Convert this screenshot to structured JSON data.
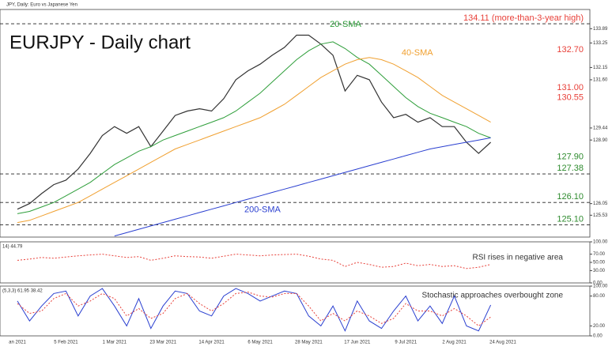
{
  "chart_data": [
    {
      "type": "line",
      "title": "EURJPY - Daily chart",
      "subtitle": "JPY, Daily:  Euro vs Japanese Yen",
      "ylim": [
        124.55,
        134.75
      ],
      "yticks": [
        {
          "value": 125.53,
          "label": "125.53"
        },
        {
          "value": 126.05,
          "label": "126.05"
        },
        {
          "value": 128.9,
          "label": "128.90"
        },
        {
          "value": 129.44,
          "label": "129.44"
        },
        {
          "value": 131.6,
          "label": "131.60"
        },
        {
          "value": 132.15,
          "label": "132.15"
        },
        {
          "value": 133.25,
          "label": "133.25"
        },
        {
          "value": 133.89,
          "label": "133.89"
        }
      ],
      "levels": [
        {
          "value": 134.11,
          "label": "134.11 (more-than-3-year high)",
          "color": "#e8413a",
          "line": true
        },
        {
          "value": 132.7,
          "label": "132.70",
          "color": "#e8413a",
          "line": false
        },
        {
          "value": 131.0,
          "label": "131.00",
          "color": "#e8413a",
          "line": false
        },
        {
          "value": 130.55,
          "label": "130.55",
          "color": "#e8413a",
          "line": false
        },
        {
          "value": 127.9,
          "label": "127.90",
          "color": "#2e8b2e",
          "line": false
        },
        {
          "value": 127.38,
          "label": "127.38",
          "color": "#2e8b2e",
          "line": true
        },
        {
          "value": 126.1,
          "label": "126.10",
          "color": "#2e8b2e",
          "line": true
        },
        {
          "value": 125.1,
          "label": "125.10",
          "color": "#2e8b2e",
          "line": true
        }
      ],
      "series": [
        {
          "color": "#333333",
          "values": [
            125.8,
            126.05,
            126.5,
            126.9,
            127.1,
            127.6,
            128.3,
            129.1,
            129.5,
            129.2,
            129.5,
            128.6,
            129.3,
            130.0,
            130.2,
            130.3,
            130.2,
            130.75,
            131.6,
            132.0,
            132.3,
            132.7,
            133.05,
            133.6,
            133.6,
            133.2,
            132.7,
            131.1,
            131.8,
            131.6,
            130.6,
            129.9,
            130.05,
            129.7,
            129.9,
            129.5,
            129.5,
            128.8,
            128.3,
            128.8,
            null
          ]
        },
        {
          "name": "20-SMA",
          "color": "#2e9e3a",
          "values": [
            125.6,
            125.7,
            125.9,
            126.1,
            126.4,
            126.7,
            127.0,
            127.4,
            127.8,
            128.1,
            128.4,
            128.6,
            128.9,
            129.1,
            129.3,
            129.5,
            129.7,
            129.9,
            130.2,
            130.6,
            131.0,
            131.5,
            132.0,
            132.5,
            132.9,
            133.2,
            133.3,
            133.0,
            132.6,
            132.3,
            131.8,
            131.3,
            130.8,
            130.4,
            130.1,
            129.9,
            129.7,
            129.5,
            129.2,
            129.0,
            null
          ]
        },
        {
          "name": "40-SMA",
          "color": "#f0a030",
          "values": [
            125.2,
            125.3,
            125.5,
            125.7,
            125.9,
            126.1,
            126.4,
            126.7,
            127.0,
            127.3,
            127.6,
            127.9,
            128.2,
            128.5,
            128.7,
            128.9,
            129.1,
            129.3,
            129.5,
            129.7,
            129.9,
            130.2,
            130.5,
            130.9,
            131.3,
            131.7,
            132.0,
            132.3,
            132.5,
            132.6,
            132.5,
            132.3,
            132.0,
            131.7,
            131.3,
            130.9,
            130.6,
            130.3,
            130.0,
            129.7,
            null
          ]
        },
        {
          "name": "200-SMA",
          "color": "#2a3fd0",
          "values": [
            null,
            null,
            null,
            null,
            null,
            null,
            null,
            null,
            124.6,
            124.75,
            124.9,
            125.05,
            125.2,
            125.35,
            125.5,
            125.65,
            125.8,
            125.95,
            126.1,
            126.25,
            126.4,
            126.55,
            126.7,
            126.85,
            127.0,
            127.15,
            127.3,
            127.45,
            127.6,
            127.75,
            127.9,
            128.05,
            128.2,
            128.35,
            128.5,
            128.6,
            128.7,
            128.8,
            128.9,
            129.0,
            null
          ]
        }
      ]
    },
    {
      "type": "line",
      "title": "14) 44.79",
      "annotation": "RSI rises in negative area",
      "ylim": [
        0,
        100
      ],
      "yticks": [
        {
          "value": 0,
          "label": "0.00"
        },
        {
          "value": 30,
          "label": "30.00"
        },
        {
          "value": 50,
          "label": "50.00"
        },
        {
          "value": 70,
          "label": "70.00"
        },
        {
          "value": 100,
          "label": "100.00"
        }
      ],
      "series": [
        {
          "color": "#e8413a",
          "dash": true,
          "values": [
            55,
            58,
            62,
            60,
            63,
            66,
            68,
            70,
            66,
            62,
            64,
            55,
            60,
            66,
            64,
            63,
            60,
            65,
            70,
            68,
            66,
            68,
            69,
            70,
            65,
            58,
            55,
            40,
            50,
            45,
            38,
            40,
            48,
            42,
            45,
            40,
            42,
            35,
            38,
            45,
            null
          ]
        }
      ]
    },
    {
      "type": "line",
      "title": "(5,3,3) 61.95 38.42",
      "annotation": "Stochastic approaches overbought zone",
      "ylim": [
        0,
        100
      ],
      "yticks": [
        {
          "value": 0,
          "label": "0.00"
        },
        {
          "value": 20,
          "label": "20.00"
        },
        {
          "value": 80,
          "label": "80.00"
        },
        {
          "value": 100,
          "label": "100.00"
        }
      ],
      "categories": [
        "an 2021",
        null,
        null,
        null,
        "5 Feb 2021",
        null,
        null,
        null,
        "1 Mar 2021",
        null,
        null,
        null,
        "23 Mar 2021",
        null,
        null,
        null,
        "14 Apr 2021",
        null,
        null,
        null,
        "6 May 2021",
        null,
        null,
        null,
        "28 May 2021",
        null,
        null,
        null,
        "17 Jun 2021",
        null,
        null,
        null,
        "9 Jul 2021",
        null,
        null,
        null,
        "2 Aug 2021",
        null,
        null,
        null,
        "24 Aug 2021"
      ],
      "series": [
        {
          "color": "#2a3fd0",
          "values": [
            70,
            30,
            60,
            85,
            90,
            40,
            80,
            95,
            60,
            20,
            75,
            15,
            60,
            90,
            85,
            50,
            40,
            80,
            95,
            85,
            70,
            80,
            90,
            85,
            40,
            20,
            60,
            10,
            70,
            30,
            15,
            50,
            80,
            30,
            60,
            25,
            80,
            20,
            10,
            62,
            null
          ]
        },
        {
          "color": "#e8413a",
          "dash": true,
          "values": [
            65,
            45,
            50,
            75,
            85,
            60,
            70,
            85,
            75,
            40,
            55,
            35,
            45,
            75,
            85,
            65,
            50,
            65,
            85,
            88,
            80,
            78,
            85,
            85,
            60,
            30,
            45,
            30,
            50,
            40,
            25,
            35,
            65,
            50,
            50,
            40,
            55,
            40,
            20,
            38,
            null
          ]
        }
      ]
    }
  ]
}
